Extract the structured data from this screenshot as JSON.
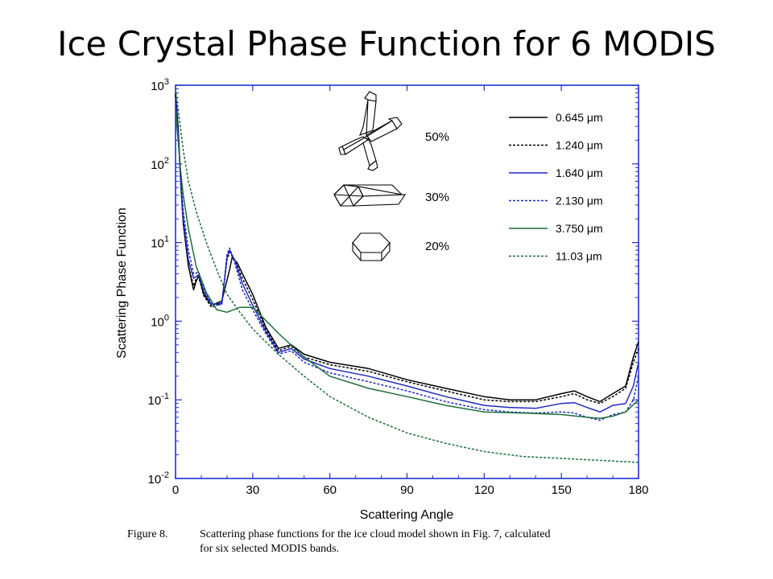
{
  "slide": {
    "title": "Ice Crystal Phase Function for 6 MODIS"
  },
  "caption": {
    "label": "Figure 8.",
    "line1": "Scattering phase functions for the ice cloud model shown in Fig. 7, calculated",
    "line2": "for six selected MODIS bands."
  },
  "colors": {
    "black": "#000000",
    "blue": "#1f2bc2",
    "green": "#1b6e3a",
    "frame": "#2233cc"
  },
  "habits": [
    {
      "icon": "bullet-rosette-icon",
      "percent": "50%"
    },
    {
      "icon": "column-icon",
      "percent": "30%"
    },
    {
      "icon": "plate-icon",
      "percent": "20%"
    }
  ],
  "chart_data": {
    "type": "line",
    "xlabel": "Scattering Angle",
    "ylabel": "Scattering Phase Function",
    "xlim": [
      0,
      180
    ],
    "ylim": [
      0.01,
      1000
    ],
    "yscale": "log",
    "xticks": [
      0,
      30,
      60,
      90,
      120,
      150,
      180
    ],
    "xtick_labels": [
      "0",
      "30",
      "60",
      "90",
      "120",
      "150",
      "180"
    ],
    "yticks": [
      0.01,
      0.1,
      1,
      10,
      100,
      1000
    ],
    "ytick_base": [
      "10",
      "10",
      "10",
      "10",
      "10",
      "10"
    ],
    "ytick_exp": [
      "-2",
      "-1",
      "0",
      "1",
      "2",
      "3"
    ],
    "legend_position": "top-right",
    "series": [
      {
        "name": "0.645 μm",
        "color": "#000000",
        "dash": "solid",
        "x": [
          0,
          1,
          2,
          3,
          5,
          7,
          8,
          9,
          11,
          14,
          18,
          21,
          22,
          24,
          26,
          30,
          35,
          40,
          45,
          50,
          60,
          75,
          90,
          105,
          120,
          130,
          140,
          150,
          155,
          160,
          165,
          170,
          175,
          178,
          180
        ],
        "y": [
          800,
          300,
          60,
          18,
          5,
          2.5,
          3.2,
          3.8,
          2.2,
          1.6,
          1.8,
          4.5,
          6.5,
          5.5,
          4.0,
          2.2,
          0.85,
          0.45,
          0.5,
          0.38,
          0.3,
          0.25,
          0.18,
          0.14,
          0.11,
          0.1,
          0.1,
          0.12,
          0.13,
          0.11,
          0.095,
          0.12,
          0.15,
          0.35,
          0.55
        ]
      },
      {
        "name": "1.240 μm",
        "color": "#000000",
        "dash": "dashed",
        "x": [
          0,
          1,
          2,
          3,
          5,
          7,
          8,
          9,
          11,
          14,
          18,
          20,
          21,
          23,
          26,
          30,
          35,
          40,
          45,
          50,
          60,
          75,
          90,
          105,
          120,
          130,
          140,
          150,
          155,
          160,
          165,
          170,
          175,
          178,
          180
        ],
        "y": [
          750,
          280,
          55,
          17,
          5,
          2.8,
          3.5,
          3.6,
          2.1,
          1.5,
          1.7,
          6.0,
          7.5,
          6.0,
          3.5,
          1.9,
          0.8,
          0.42,
          0.48,
          0.35,
          0.28,
          0.23,
          0.17,
          0.13,
          0.1,
          0.095,
          0.095,
          0.11,
          0.12,
          0.1,
          0.09,
          0.11,
          0.14,
          0.3,
          0.45
        ]
      },
      {
        "name": "1.640 μm",
        "color": "#1f2bc2",
        "dash": "solid",
        "x": [
          0,
          1,
          2,
          3,
          5,
          7,
          9,
          11,
          14,
          18,
          20,
          21,
          23,
          26,
          30,
          35,
          40,
          45,
          50,
          60,
          75,
          90,
          105,
          120,
          130,
          140,
          150,
          155,
          160,
          165,
          170,
          175,
          178,
          180
        ],
        "y": [
          700,
          250,
          60,
          20,
          6,
          3.5,
          3.9,
          2.4,
          1.6,
          1.7,
          6.5,
          8.0,
          6.0,
          3.0,
          1.6,
          0.75,
          0.4,
          0.45,
          0.33,
          0.25,
          0.2,
          0.15,
          0.11,
          0.085,
          0.08,
          0.078,
          0.09,
          0.092,
          0.08,
          0.07,
          0.085,
          0.09,
          0.15,
          0.3
        ]
      },
      {
        "name": "2.130 μm",
        "color": "#1f2bc2",
        "dash": "dashed",
        "x": [
          0,
          1,
          2,
          3,
          5,
          7,
          9,
          11,
          14,
          18,
          20,
          21,
          23,
          26,
          30,
          35,
          40,
          45,
          50,
          60,
          75,
          90,
          105,
          120,
          130,
          140,
          150,
          155,
          160,
          165,
          170,
          175,
          178,
          180
        ],
        "y": [
          650,
          240,
          70,
          25,
          8,
          4.0,
          4.2,
          2.6,
          1.7,
          1.6,
          7.0,
          8.5,
          5.5,
          2.5,
          1.4,
          0.7,
          0.38,
          0.42,
          0.3,
          0.22,
          0.17,
          0.13,
          0.095,
          0.075,
          0.07,
          0.068,
          0.07,
          0.068,
          0.06,
          0.055,
          0.065,
          0.07,
          0.1,
          0.2
        ]
      },
      {
        "name": "3.750 μm",
        "color": "#1b6e3a",
        "dash": "solid",
        "x": [
          0,
          1,
          2,
          3,
          5,
          8,
          12,
          16,
          20,
          25,
          30,
          33,
          40,
          50,
          60,
          75,
          90,
          105,
          120,
          135,
          150,
          160,
          165,
          170,
          175,
          180
        ],
        "y": [
          500,
          200,
          80,
          40,
          15,
          5,
          2.3,
          1.4,
          1.3,
          1.5,
          1.5,
          1.2,
          0.7,
          0.35,
          0.2,
          0.14,
          0.11,
          0.085,
          0.07,
          0.068,
          0.065,
          0.06,
          0.058,
          0.062,
          0.07,
          0.1
        ]
      },
      {
        "name": "11.03 μm",
        "color": "#1b6e3a",
        "dash": "dashed",
        "x": [
          0,
          1,
          3,
          5,
          8,
          12,
          16,
          20,
          25,
          30,
          35,
          40,
          50,
          60,
          75,
          90,
          105,
          120,
          135,
          150,
          165,
          180
        ],
        "y": [
          900,
          500,
          150,
          60,
          25,
          10,
          4.5,
          2.2,
          1.3,
          0.8,
          0.55,
          0.38,
          0.2,
          0.11,
          0.06,
          0.038,
          0.028,
          0.022,
          0.019,
          0.018,
          0.017,
          0.016
        ]
      }
    ]
  }
}
